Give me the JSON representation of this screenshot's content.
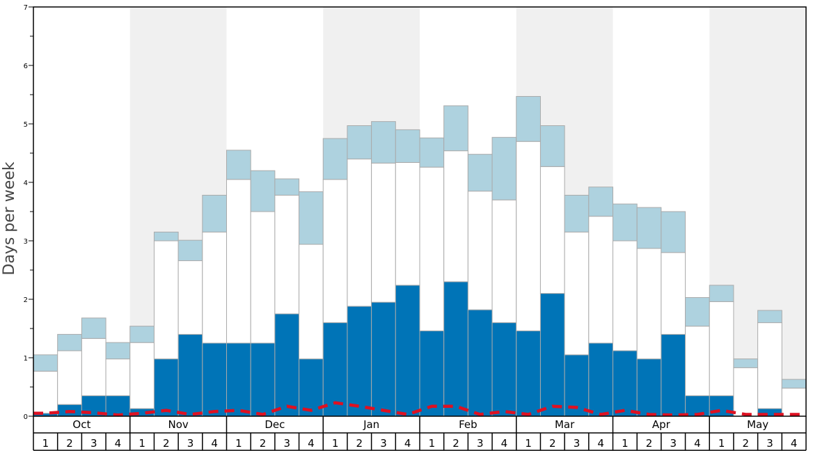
{
  "chart_data": {
    "type": "bar",
    "ylabel": "Days per week",
    "ylim": [
      0,
      7
    ],
    "yticks": [
      "0",
      "1",
      "2",
      "3",
      "4",
      "5",
      "6",
      "7"
    ],
    "months": [
      "Oct",
      "Nov",
      "Dec",
      "Jan",
      "Feb",
      "Mar",
      "Apr",
      "May"
    ],
    "weeks": [
      "1",
      "2",
      "3",
      "4"
    ],
    "stack_order": [
      "dark",
      "white",
      "light"
    ],
    "colors": {
      "dark": "#0074b7",
      "white": "#ffffff",
      "light": "#aed2df",
      "line": "#dd1122",
      "band": "#f0f0f0",
      "edge": "#aaaaaa"
    },
    "shaded_months": [
      "Nov",
      "Jan",
      "Mar",
      "May"
    ],
    "grid": false,
    "series": [
      {
        "values": [
          0.05,
          0.2,
          0.35,
          0.35,
          0.13,
          0.98,
          1.4,
          1.25,
          1.25,
          1.25,
          1.75,
          0.98,
          1.6,
          1.88,
          1.95,
          2.24,
          1.46,
          2.3,
          1.82,
          1.6,
          1.46,
          2.1,
          1.05,
          1.25,
          1.12,
          0.98,
          1.4,
          0.35,
          0.35,
          0.0,
          0.13,
          0.0
        ]
      },
      {
        "values": [
          0.72,
          0.92,
          0.98,
          0.63,
          1.13,
          2.02,
          1.26,
          1.9,
          2.8,
          2.25,
          2.03,
          1.96,
          2.45,
          2.52,
          2.38,
          2.1,
          2.8,
          2.24,
          2.03,
          2.1,
          3.24,
          2.17,
          2.1,
          2.17,
          1.88,
          1.89,
          1.4,
          1.19,
          1.61,
          0.83,
          1.47,
          0.48
        ]
      },
      {
        "values": [
          0.28,
          0.28,
          0.35,
          0.28,
          0.28,
          0.15,
          0.35,
          0.63,
          0.5,
          0.7,
          0.28,
          0.9,
          0.7,
          0.57,
          0.71,
          0.56,
          0.5,
          0.77,
          0.63,
          1.07,
          0.77,
          0.7,
          0.63,
          0.5,
          0.63,
          0.7,
          0.7,
          0.49,
          0.28,
          0.15,
          0.21,
          0.15
        ]
      },
      {
        "values": [
          0.05,
          0.08,
          0.06,
          0.02,
          0.05,
          0.1,
          0.03,
          0.08,
          0.1,
          0.03,
          0.17,
          0.1,
          0.23,
          0.17,
          0.1,
          0.03,
          0.17,
          0.17,
          0.03,
          0.08,
          0.03,
          0.17,
          0.15,
          0.03,
          0.1,
          0.03,
          0.02,
          0.03,
          0.1,
          0.03,
          0.03,
          0.03
        ]
      }
    ]
  }
}
